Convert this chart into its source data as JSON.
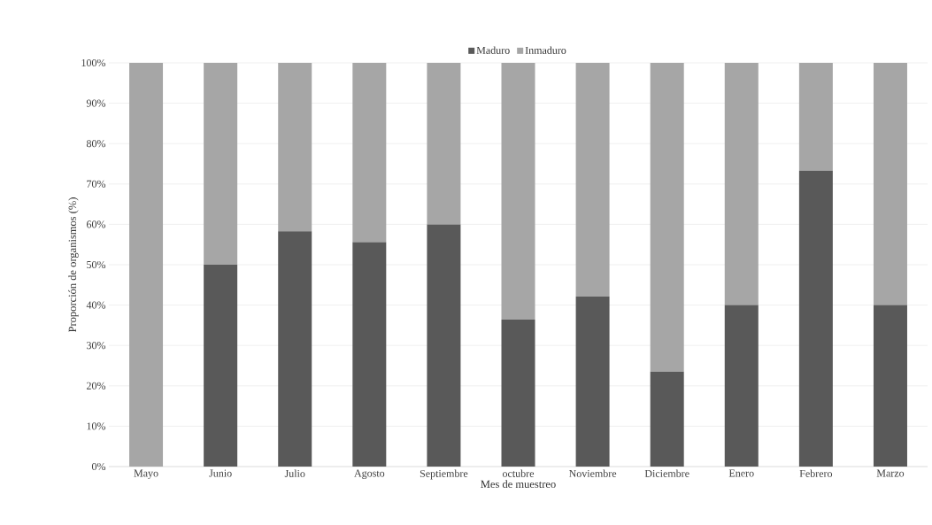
{
  "chart_data": {
    "type": "bar",
    "stacked": true,
    "xlabel": "Mes de muestreo",
    "ylabel": "Proporción de organismos (%)",
    "categories": [
      "Mayo",
      "Junio",
      "Julio",
      "Agosto",
      "Septiembre",
      "octubre",
      "Noviembre",
      "Diciembre",
      "Enero",
      "Febrero",
      "Marzo"
    ],
    "series": [
      {
        "name": "Maduro",
        "color": "#595959",
        "values": [
          0,
          50,
          58.3,
          55.6,
          60,
          36.4,
          42.1,
          23.5,
          40,
          73.3,
          40
        ]
      },
      {
        "name": "Inmaduro",
        "color": "#a6a6a6",
        "values": [
          100,
          50,
          41.7,
          44.4,
          40,
          63.6,
          57.9,
          76.5,
          60,
          26.7,
          60
        ]
      }
    ],
    "ylim": [
      0,
      100
    ],
    "yticks": [
      {
        "value": 0,
        "label": "0%"
      },
      {
        "value": 10,
        "label": "10%"
      },
      {
        "value": 20,
        "label": "20%"
      },
      {
        "value": 30,
        "label": "30%"
      },
      {
        "value": 40,
        "label": "40%"
      },
      {
        "value": 50,
        "label": "50%"
      },
      {
        "value": 60,
        "label": "60%"
      },
      {
        "value": 70,
        "label": "70%"
      },
      {
        "value": 80,
        "label": "80%"
      },
      {
        "value": 90,
        "label": "90%"
      },
      {
        "value": 100,
        "label": "100%"
      }
    ],
    "grid": "y",
    "legend": "top"
  }
}
